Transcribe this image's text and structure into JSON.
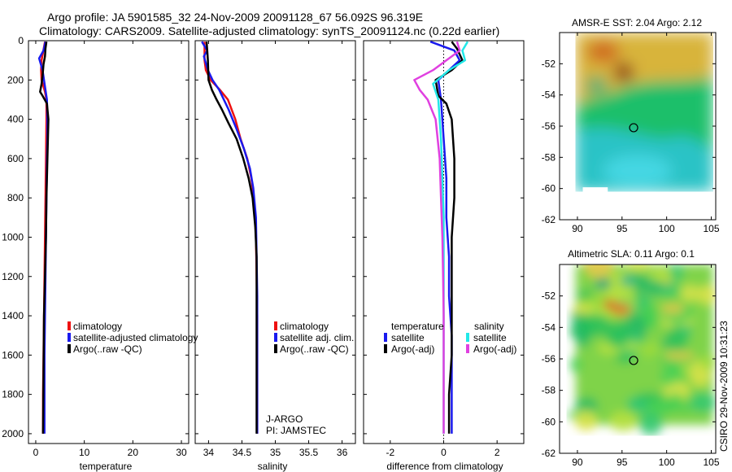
{
  "header": {
    "line1": "Argo profile: JA 5901585_32 24-Nov-2009 20091128_67 56.092S 96.319E",
    "line2": "Climatology: CARS2009. Satellite-adjusted climatology: synTS_20091124.nc (0.22d earlier)"
  },
  "colors": {
    "red": "#ee1111",
    "blue": "#1a1aee",
    "black": "#000000",
    "cyan": "#22e8e8",
    "magenta": "#e040e0"
  },
  "chart_data": [
    {
      "id": "temperature",
      "type": "line",
      "xlabel": "temperature",
      "xlim": [
        -1.5,
        31.5
      ],
      "ylim": [
        0,
        2050
      ],
      "yreversed": true,
      "xticks": [
        0,
        10,
        20,
        30
      ],
      "yticks": [
        0,
        200,
        400,
        600,
        800,
        1000,
        1200,
        1400,
        1600,
        1800,
        2000
      ],
      "series": [
        {
          "name": "climatology",
          "color": "red",
          "x": [
            1.9,
            1.5,
            1.2,
            1.1,
            1.2,
            1.9,
            2.2,
            2.2,
            2.1,
            2.0,
            1.9,
            1.8,
            1.7,
            1.6,
            1.5,
            1.5
          ],
          "y": [
            5,
            60,
            100,
            150,
            200,
            260,
            300,
            400,
            600,
            800,
            1000,
            1200,
            1400,
            1600,
            1800,
            2000
          ]
        },
        {
          "name": "satellite-adjusted climatology",
          "color": "blue",
          "x": [
            2.0,
            1.6,
            0.7,
            1.4,
            2.0,
            2.3,
            2.4,
            2.4,
            2.3,
            2.2,
            2.1,
            2.0,
            1.9,
            1.8,
            1.8,
            1.8
          ],
          "y": [
            5,
            50,
            90,
            150,
            250,
            300,
            400,
            500,
            600,
            800,
            1000,
            1200,
            1400,
            1600,
            1800,
            2000
          ]
        },
        {
          "name": "Argo(..raw -QC)",
          "color": "black",
          "x": [
            2.2,
            2.0,
            1.9,
            1.6,
            1.4,
            1.2,
            0.9,
            1.4,
            2.3,
            2.6,
            2.4,
            2.2,
            2.1,
            1.9,
            1.7,
            1.6,
            1.5
          ],
          "y": [
            5,
            40,
            80,
            120,
            180,
            220,
            260,
            280,
            320,
            400,
            600,
            800,
            1000,
            1200,
            1400,
            1700,
            2000
          ]
        }
      ],
      "legend": [
        "climatology",
        "satellite-adjusted climatology",
        "Argo(..raw -QC)"
      ]
    },
    {
      "id": "salinity",
      "type": "line",
      "xlabel": "salinity",
      "xlim": [
        33.8,
        36.2
      ],
      "ylim": [
        0,
        2050
      ],
      "yreversed": true,
      "xticks": [
        34,
        34.5,
        35,
        35.5,
        36
      ],
      "xtick_labels": [
        "34",
        "34.5",
        "35",
        "35.5",
        "36"
      ],
      "series": [
        {
          "name": "climatology",
          "color": "red",
          "x": [
            33.94,
            33.94,
            33.96,
            34.03,
            34.17,
            34.29,
            34.4,
            34.48,
            34.58,
            34.64,
            34.68,
            34.71,
            34.72,
            34.73,
            34.73,
            34.73,
            34.73
          ],
          "y": [
            5,
            100,
            150,
            200,
            250,
            300,
            400,
            500,
            600,
            700,
            800,
            1000,
            1200,
            1400,
            1600,
            1800,
            2000
          ]
        },
        {
          "name": "satellite adj. clim.",
          "color": "blue",
          "x": [
            33.9,
            33.98,
            33.93,
            33.99,
            34.06,
            34.16,
            34.3,
            34.42,
            34.53,
            34.62,
            34.67,
            34.71,
            34.72,
            34.73,
            34.73,
            34.73,
            34.73
          ],
          "y": [
            5,
            50,
            80,
            150,
            200,
            250,
            350,
            450,
            550,
            650,
            750,
            900,
            1100,
            1300,
            1500,
            1800,
            2000
          ]
        },
        {
          "name": "Argo(..raw -QC)",
          "color": "black",
          "x": [
            33.97,
            33.98,
            33.99,
            34.0,
            34.05,
            34.12,
            34.2,
            34.3,
            34.42,
            34.52,
            34.6,
            34.66,
            34.7,
            34.72,
            34.72,
            34.72,
            34.72
          ],
          "y": [
            5,
            50,
            100,
            200,
            250,
            300,
            350,
            420,
            500,
            600,
            700,
            800,
            950,
            1100,
            1400,
            1700,
            2000
          ]
        }
      ],
      "legend": [
        "climatology",
        "satellite adj. clim.",
        "Argo(..raw -QC)"
      ],
      "annotation": [
        "J-ARGO",
        "PI: JAMSTEC"
      ]
    },
    {
      "id": "difference",
      "type": "line",
      "xlabel": "difference from climatology",
      "xlim": [
        -3.0,
        3.0
      ],
      "ylim": [
        0,
        2050
      ],
      "yreversed": true,
      "xticks": [
        -2,
        0,
        2
      ],
      "zero_line": true,
      "series": [
        {
          "name": "temperature satellite",
          "color": "blue",
          "x": [
            -0.5,
            0.4,
            0.6,
            0.2,
            -0.2,
            -0.1,
            0.0,
            0.1,
            0.1,
            0.2,
            0.2,
            0.3,
            0.3,
            0.3,
            0.3,
            0.3
          ],
          "y": [
            5,
            50,
            100,
            150,
            200,
            300,
            500,
            700,
            900,
            1100,
            1300,
            1500,
            1600,
            1700,
            1850,
            2000
          ]
        },
        {
          "name": "temperature Argo(-adj)",
          "color": "black",
          "x": [
            0.3,
            0.5,
            0.7,
            0.3,
            -0.3,
            -0.2,
            0.1,
            0.3,
            0.4,
            0.4,
            0.3,
            0.3,
            0.3,
            0.3,
            0.2,
            0.2
          ],
          "y": [
            5,
            40,
            100,
            150,
            200,
            280,
            320,
            400,
            600,
            800,
            1000,
            1200,
            1400,
            1600,
            1800,
            2000
          ]
        },
        {
          "name": "salinity satellite",
          "color": "cyan",
          "x": [
            0.9,
            0.7,
            0.8,
            0.2,
            -0.4,
            -0.2,
            -0.1,
            -0.05,
            0.0,
            0.0,
            0.0,
            0.0,
            0.0,
            0.0,
            0.0
          ],
          "y": [
            5,
            50,
            100,
            150,
            220,
            300,
            500,
            700,
            900,
            1100,
            1300,
            1500,
            1700,
            1850,
            2000
          ]
        },
        {
          "name": "salinity Argo(-adj)",
          "color": "magenta",
          "x": [
            0.5,
            0.6,
            0.1,
            -0.4,
            -1.1,
            -0.9,
            -0.6,
            -0.3,
            -0.15,
            -0.1,
            -0.05,
            -0.02,
            0.0,
            0.0,
            0.0
          ],
          "y": [
            5,
            50,
            100,
            150,
            200,
            250,
            300,
            400,
            600,
            800,
            1000,
            1200,
            1400,
            1700,
            2000
          ]
        }
      ],
      "legend_temperature": {
        "title": "temperature",
        "items": [
          "satellite",
          "Argo(-adj)"
        ]
      },
      "legend_salinity": {
        "title": "salinity",
        "items": [
          "satellite",
          "Argo(-adj)"
        ]
      }
    },
    {
      "id": "sst_map",
      "type": "heatmap",
      "title": "AMSR-E SST: 2.04 Argo: 2.12",
      "xlim": [
        88,
        105.5
      ],
      "ylim": [
        -62,
        -50
      ],
      "xticks": [
        90,
        95,
        100,
        105
      ],
      "yticks": [
        -52,
        -54,
        -56,
        -58,
        -60,
        -62
      ],
      "data_extent": {
        "lon": [
          89.8,
          105.2
        ],
        "lat": [
          -60.2,
          -50
        ]
      },
      "marker": {
        "lon": 96.3,
        "lat": -56.1
      }
    },
    {
      "id": "sla_map",
      "type": "heatmap",
      "title": "Altimetric SLA: 0.11 Argo: 0.1",
      "xlim": [
        88,
        105.5
      ],
      "ylim": [
        -62,
        -50
      ],
      "xticks": [
        90,
        95,
        100,
        105
      ],
      "yticks": [
        -52,
        -54,
        -56,
        -58,
        -60,
        -62
      ],
      "data_extent": {
        "lon": [
          89.8,
          105.2
        ],
        "lat": [
          -60.2,
          -50
        ]
      },
      "marker": {
        "lon": 96.3,
        "lat": -56.1
      }
    }
  ],
  "footer": {
    "stamp": "CSIRO 29-Nov-2009 10:31:23"
  }
}
